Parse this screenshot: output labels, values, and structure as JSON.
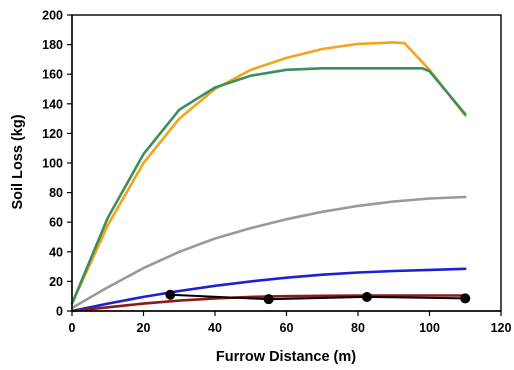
{
  "chart_data": {
    "type": "line",
    "title": "",
    "xlabel": "Furrow Distance (m)",
    "ylabel": "Soil Loss (kg)",
    "xlim": [
      0,
      120
    ],
    "ylim": [
      0,
      200
    ],
    "xticks": [
      0,
      20,
      40,
      60,
      80,
      100,
      120
    ],
    "yticks": [
      0,
      20,
      40,
      60,
      80,
      100,
      120,
      140,
      160,
      180,
      200
    ],
    "grid": false,
    "legend": "none",
    "series": [
      {
        "color": "#f5a31a",
        "marker": "none",
        "x": [
          0,
          10,
          20,
          30,
          40,
          50,
          60,
          70,
          80,
          90,
          93,
          100,
          110
        ],
        "y": [
          5,
          58,
          100,
          130,
          150,
          163,
          171,
          177,
          180.5,
          181.5,
          181,
          163,
          132
        ]
      },
      {
        "color": "#3a8f5c",
        "marker": "none",
        "x": [
          0,
          10,
          20,
          30,
          40,
          50,
          60,
          70,
          80,
          90,
          98,
          100,
          110
        ],
        "y": [
          5,
          63,
          106,
          136,
          151,
          159,
          163,
          164,
          164,
          164,
          164,
          162,
          133
        ]
      },
      {
        "color": "#999999",
        "marker": "none",
        "x": [
          0,
          10,
          20,
          30,
          40,
          50,
          60,
          70,
          80,
          90,
          100,
          110
        ],
        "y": [
          2,
          16,
          29,
          40,
          49,
          56,
          62,
          67,
          71,
          74,
          76,
          77
        ]
      },
      {
        "color": "#1f1fd6",
        "marker": "none",
        "x": [
          0,
          10,
          20,
          30,
          40,
          50,
          60,
          70,
          80,
          90,
          100,
          110
        ],
        "y": [
          0,
          5,
          9.5,
          13.5,
          17,
          20,
          22.5,
          24.5,
          26,
          27,
          27.8,
          28.5
        ]
      },
      {
        "color": "#8b1a1a",
        "marker": "none",
        "x": [
          0,
          10,
          20,
          30,
          40,
          50,
          60,
          70,
          80,
          90,
          100,
          110
        ],
        "y": [
          0,
          2.5,
          5,
          7,
          8.5,
          9.5,
          10,
          10.3,
          10.5,
          10.5,
          10.5,
          10.5
        ]
      },
      {
        "color": "#000000",
        "marker": "circle",
        "x": [
          27.5,
          55,
          82.5,
          110
        ],
        "y": [
          11,
          8,
          9.5,
          8.5
        ]
      }
    ]
  }
}
